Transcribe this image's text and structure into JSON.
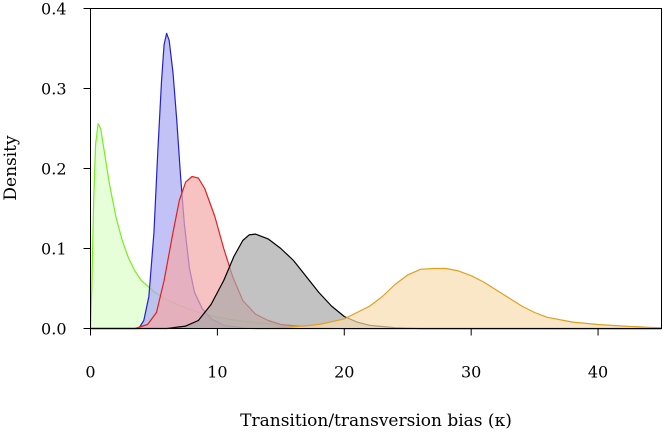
{
  "chart_data": {
    "type": "area",
    "xlabel": "Transition/transversion bias (κ)",
    "ylabel": "Density",
    "xlim": [
      0,
      45
    ],
    "ylim": [
      0,
      0.4
    ],
    "xticks": [
      0,
      10,
      20,
      30,
      40
    ],
    "yticks": [
      "0.0",
      "0.1",
      "0.2",
      "0.3",
      "0.4"
    ],
    "grid": false,
    "legend": "none",
    "series": [
      {
        "color": "#77ee22",
        "fill": "#dcffc8",
        "points": [
          [
            0,
            0
          ],
          [
            0.1,
            0.05
          ],
          [
            0.25,
            0.16
          ],
          [
            0.4,
            0.23
          ],
          [
            0.6,
            0.256
          ],
          [
            0.8,
            0.25
          ],
          [
            1.1,
            0.22
          ],
          [
            1.5,
            0.18
          ],
          [
            2,
            0.14
          ],
          [
            2.5,
            0.11
          ],
          [
            3,
            0.088
          ],
          [
            3.5,
            0.072
          ],
          [
            4,
            0.06
          ],
          [
            5,
            0.046
          ],
          [
            6,
            0.036
          ],
          [
            7,
            0.029
          ],
          [
            8,
            0.023
          ],
          [
            9,
            0.018
          ],
          [
            10,
            0.014
          ],
          [
            12,
            0.009
          ],
          [
            14,
            0.006
          ],
          [
            16,
            0.003
          ],
          [
            18,
            0.0015
          ],
          [
            20,
            0
          ],
          [
            45,
            0
          ]
        ]
      },
      {
        "color": "#2222cc",
        "fill": "#a8a8f4",
        "points": [
          [
            0,
            0
          ],
          [
            3.8,
            0
          ],
          [
            4.2,
            0.01
          ],
          [
            4.6,
            0.04
          ],
          [
            5,
            0.12
          ],
          [
            5.3,
            0.22
          ],
          [
            5.6,
            0.31
          ],
          [
            5.8,
            0.355
          ],
          [
            6,
            0.369
          ],
          [
            6.2,
            0.36
          ],
          [
            6.5,
            0.32
          ],
          [
            6.8,
            0.26
          ],
          [
            7.1,
            0.19
          ],
          [
            7.4,
            0.13
          ],
          [
            7.8,
            0.075
          ],
          [
            8.2,
            0.045
          ],
          [
            8.8,
            0.025
          ],
          [
            9.5,
            0.012
          ],
          [
            10.5,
            0.004
          ],
          [
            12,
            0.001
          ],
          [
            13,
            0
          ],
          [
            45,
            0
          ]
        ]
      },
      {
        "color": "#dd2222",
        "fill": "#f4a8a8",
        "points": [
          [
            0,
            0
          ],
          [
            3.5,
            0
          ],
          [
            4.5,
            0.005
          ],
          [
            5.2,
            0.02
          ],
          [
            5.8,
            0.06
          ],
          [
            6.5,
            0.12
          ],
          [
            7,
            0.16
          ],
          [
            7.5,
            0.183
          ],
          [
            8,
            0.19
          ],
          [
            8.5,
            0.188
          ],
          [
            9,
            0.175
          ],
          [
            9.8,
            0.14
          ],
          [
            10.5,
            0.1
          ],
          [
            11.2,
            0.065
          ],
          [
            12,
            0.035
          ],
          [
            13,
            0.018
          ],
          [
            14,
            0.01
          ],
          [
            15,
            0.005
          ],
          [
            17,
            0.002
          ],
          [
            20,
            0
          ],
          [
            45,
            0
          ]
        ]
      },
      {
        "color": "#000000",
        "fill": "#a8a8a8",
        "points": [
          [
            0,
            0
          ],
          [
            6,
            0
          ],
          [
            7.5,
            0.003
          ],
          [
            8.5,
            0.01
          ],
          [
            9.5,
            0.03
          ],
          [
            10.5,
            0.06
          ],
          [
            11.3,
            0.09
          ],
          [
            12,
            0.11
          ],
          [
            12.5,
            0.117
          ],
          [
            13,
            0.118
          ],
          [
            14,
            0.112
          ],
          [
            15,
            0.1
          ],
          [
            16,
            0.085
          ],
          [
            17,
            0.065
          ],
          [
            18,
            0.045
          ],
          [
            19,
            0.028
          ],
          [
            20,
            0.015
          ],
          [
            21,
            0.008
          ],
          [
            22,
            0.004
          ],
          [
            24,
            0.001
          ],
          [
            26,
            0
          ],
          [
            45,
            0
          ]
        ]
      },
      {
        "color": "#e0a020",
        "fill": "#f8ddb0",
        "points": [
          [
            0,
            0
          ],
          [
            14,
            0
          ],
          [
            16,
            0.002
          ],
          [
            18,
            0.005
          ],
          [
            20,
            0.012
          ],
          [
            22,
            0.028
          ],
          [
            23,
            0.04
          ],
          [
            24,
            0.055
          ],
          [
            25,
            0.067
          ],
          [
            26,
            0.074
          ],
          [
            27,
            0.075
          ],
          [
            28,
            0.075
          ],
          [
            29,
            0.072
          ],
          [
            30,
            0.066
          ],
          [
            31,
            0.058
          ],
          [
            32,
            0.048
          ],
          [
            33,
            0.038
          ],
          [
            34,
            0.028
          ],
          [
            35,
            0.02
          ],
          [
            36,
            0.014
          ],
          [
            38,
            0.008
          ],
          [
            40,
            0.005
          ],
          [
            42,
            0.003
          ],
          [
            44,
            0.0015
          ],
          [
            45,
            0.001
          ]
        ]
      }
    ]
  }
}
